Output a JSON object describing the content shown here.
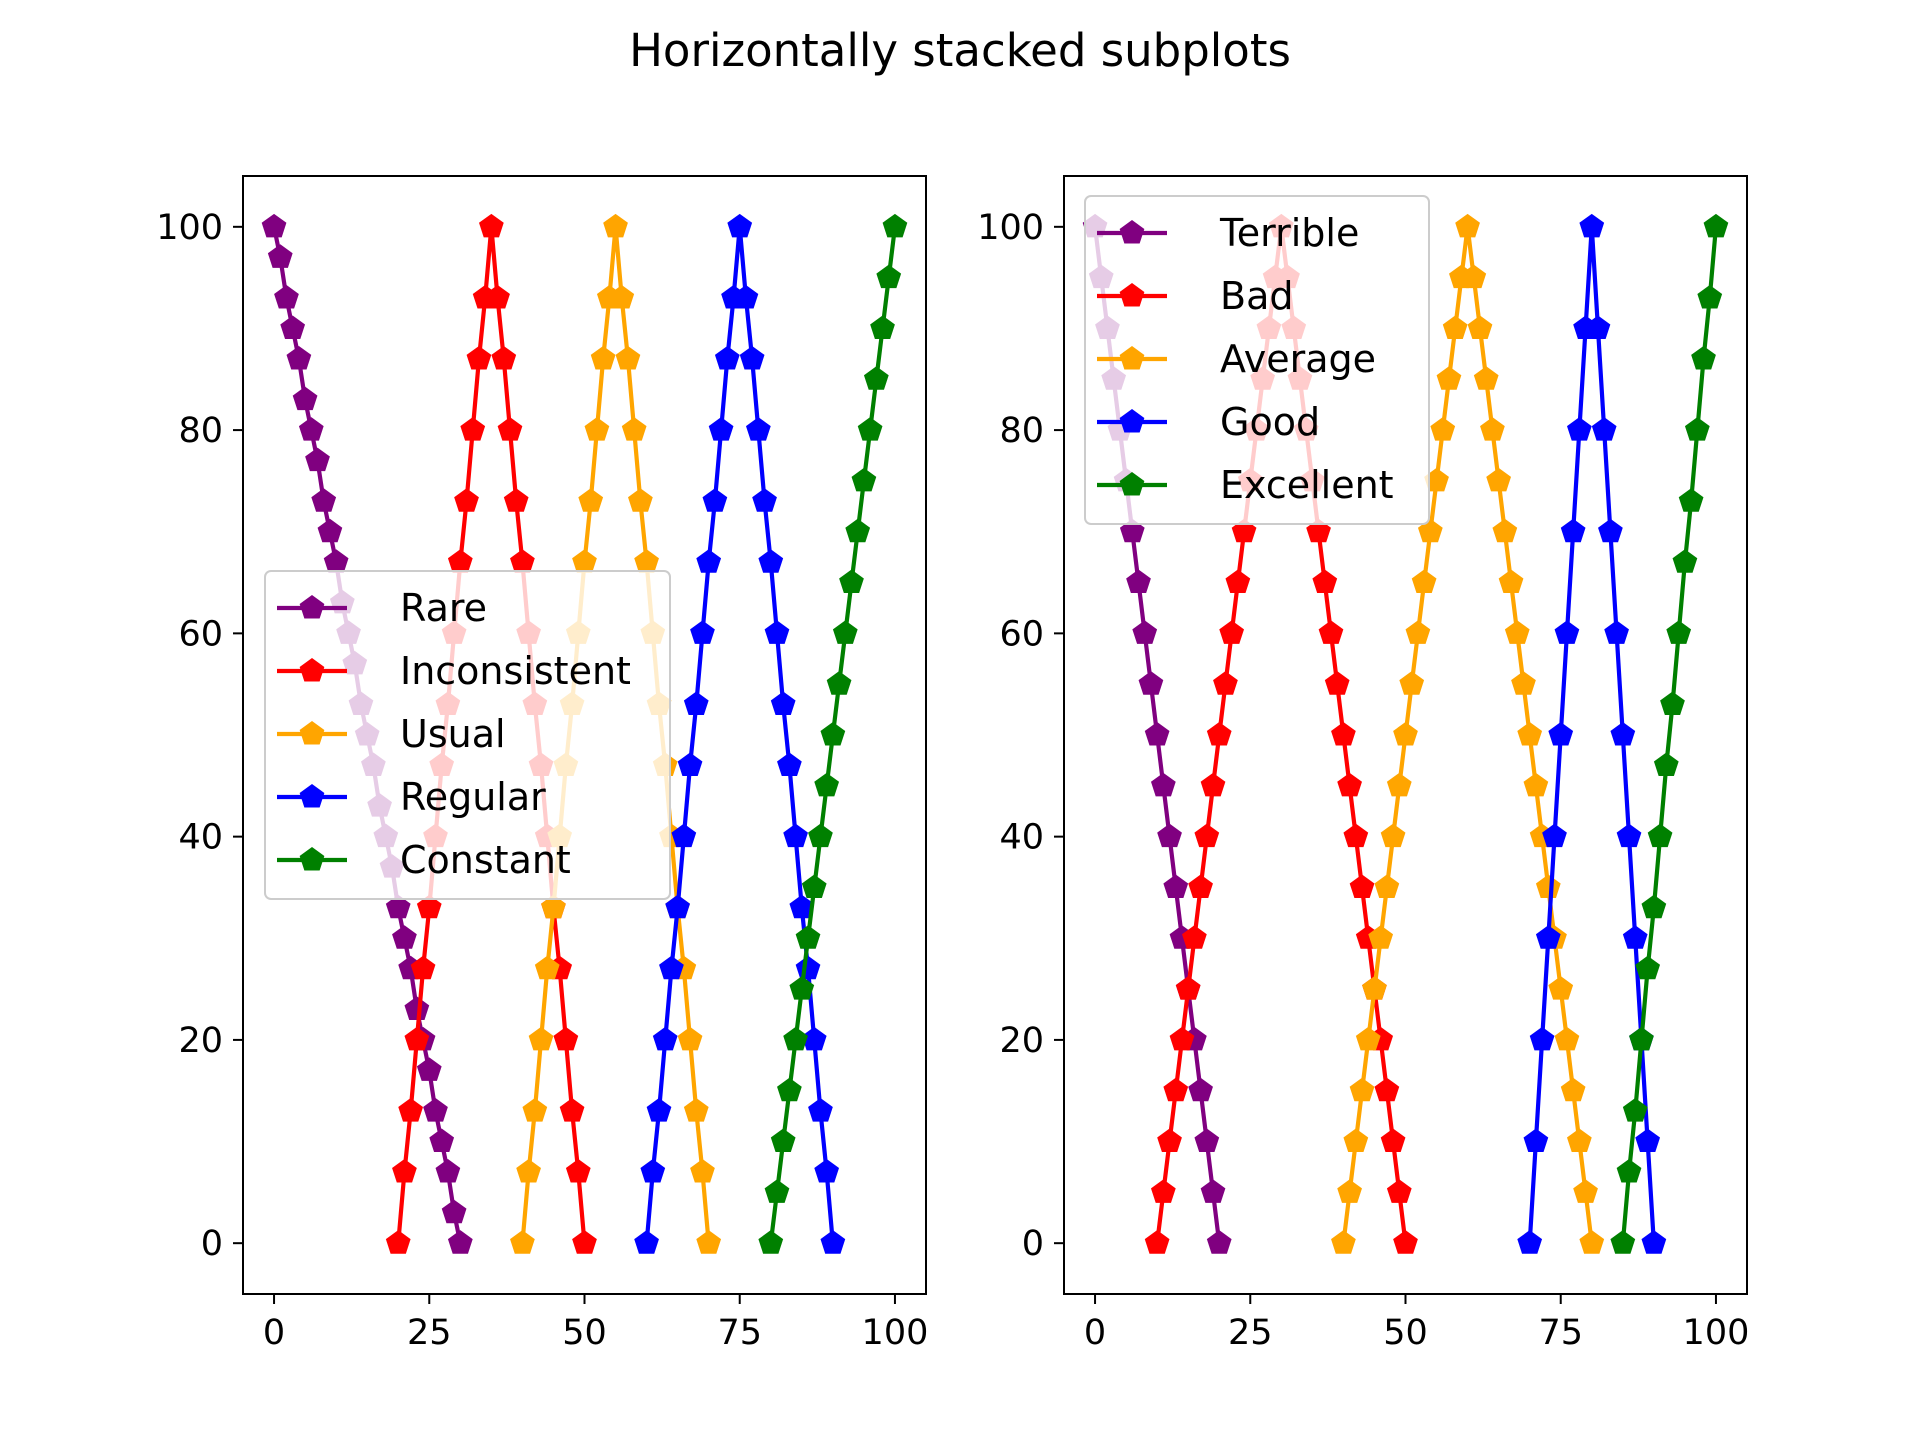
{
  "suptitle": "Horizontally stacked subplots",
  "chart_data": [
    {
      "type": "line",
      "marker": "pentagon",
      "xlim": [
        -5,
        105
      ],
      "ylim": [
        -5,
        105
      ],
      "xticks": [
        0,
        25,
        50,
        75,
        100
      ],
      "yticks": [
        0,
        20,
        40,
        60,
        80,
        100
      ],
      "legend_position": "center-left",
      "series": [
        {
          "name": "Rare",
          "color": "#800080",
          "x": [
            0,
            1,
            2,
            3,
            4,
            5,
            6,
            7,
            8,
            9,
            10,
            11,
            12,
            13,
            14,
            15,
            16,
            17,
            18,
            19,
            20,
            21,
            22,
            23,
            24,
            25,
            26,
            27,
            28,
            29,
            30
          ],
          "y": [
            100,
            97,
            93,
            90,
            87,
            83,
            80,
            77,
            73,
            70,
            67,
            63,
            60,
            57,
            53,
            50,
            47,
            43,
            40,
            37,
            33,
            30,
            27,
            23,
            20,
            17,
            13,
            10,
            7,
            3,
            0
          ]
        },
        {
          "name": "Inconsistent",
          "color": "#ff0000",
          "x": [
            20,
            21,
            22,
            23,
            24,
            25,
            26,
            27,
            28,
            29,
            30,
            31,
            32,
            33,
            34,
            35,
            36,
            37,
            38,
            39,
            40,
            41,
            42,
            43,
            44,
            45,
            46,
            47,
            48,
            49,
            50
          ],
          "y": [
            0,
            7,
            13,
            20,
            27,
            33,
            40,
            47,
            53,
            60,
            67,
            73,
            80,
            87,
            93,
            100,
            93,
            87,
            80,
            73,
            67,
            60,
            53,
            47,
            40,
            33,
            27,
            20,
            13,
            7,
            0
          ]
        },
        {
          "name": "Usual",
          "color": "#ffa500",
          "x": [
            40,
            41,
            42,
            43,
            44,
            45,
            46,
            47,
            48,
            49,
            50,
            51,
            52,
            53,
            54,
            55,
            56,
            57,
            58,
            59,
            60,
            61,
            62,
            63,
            64,
            65,
            66,
            67,
            68,
            69,
            70
          ],
          "y": [
            0,
            7,
            13,
            20,
            27,
            33,
            40,
            47,
            53,
            60,
            67,
            73,
            80,
            87,
            93,
            100,
            93,
            87,
            80,
            73,
            67,
            60,
            53,
            47,
            40,
            33,
            27,
            20,
            13,
            7,
            0
          ]
        },
        {
          "name": "Regular",
          "color": "#0000ff",
          "x": [
            60,
            61,
            62,
            63,
            64,
            65,
            66,
            67,
            68,
            69,
            70,
            71,
            72,
            73,
            74,
            75,
            76,
            77,
            78,
            79,
            80,
            81,
            82,
            83,
            84,
            85,
            86,
            87,
            88,
            89,
            90
          ],
          "y": [
            0,
            7,
            13,
            20,
            27,
            33,
            40,
            47,
            53,
            60,
            67,
            73,
            80,
            87,
            93,
            100,
            93,
            87,
            80,
            73,
            67,
            60,
            53,
            47,
            40,
            33,
            27,
            20,
            13,
            7,
            0
          ]
        },
        {
          "name": "Constant",
          "color": "#008000",
          "x": [
            80,
            81,
            82,
            83,
            84,
            85,
            86,
            87,
            88,
            89,
            90,
            91,
            92,
            93,
            94,
            95,
            96,
            97,
            98,
            99,
            100
          ],
          "y": [
            0,
            5,
            10,
            15,
            20,
            25,
            30,
            35,
            40,
            45,
            50,
            55,
            60,
            65,
            70,
            75,
            80,
            85,
            90,
            95,
            100
          ]
        }
      ]
    },
    {
      "type": "line",
      "marker": "pentagon",
      "xlim": [
        -5,
        105
      ],
      "ylim": [
        -5,
        105
      ],
      "xticks": [
        0,
        25,
        50,
        75,
        100
      ],
      "yticks": [
        0,
        20,
        40,
        60,
        80,
        100
      ],
      "legend_position": "upper-left",
      "series": [
        {
          "name": "Terrible",
          "color": "#800080",
          "x": [
            0,
            1,
            2,
            3,
            4,
            5,
            6,
            7,
            8,
            9,
            10,
            11,
            12,
            13,
            14,
            15,
            16,
            17,
            18,
            19,
            20
          ],
          "y": [
            100,
            95,
            90,
            85,
            80,
            75,
            70,
            65,
            60,
            55,
            50,
            45,
            40,
            35,
            30,
            25,
            20,
            15,
            10,
            5,
            0
          ]
        },
        {
          "name": "Bad",
          "color": "#ff0000",
          "x": [
            10,
            11,
            12,
            13,
            14,
            15,
            16,
            17,
            18,
            19,
            20,
            21,
            22,
            23,
            24,
            25,
            26,
            27,
            28,
            29,
            30,
            31,
            32,
            33,
            34,
            35,
            36,
            37,
            38,
            39,
            40,
            41,
            42,
            43,
            44,
            45,
            46,
            47,
            48,
            49,
            50
          ],
          "y": [
            0,
            5,
            10,
            15,
            20,
            25,
            30,
            35,
            40,
            45,
            50,
            55,
            60,
            65,
            70,
            75,
            80,
            85,
            90,
            95,
            100,
            95,
            90,
            85,
            80,
            75,
            70,
            65,
            60,
            55,
            50,
            45,
            40,
            35,
            30,
            25,
            20,
            15,
            10,
            5,
            0
          ]
        },
        {
          "name": "Average",
          "color": "#ffa500",
          "x": [
            40,
            41,
            42,
            43,
            44,
            45,
            46,
            47,
            48,
            49,
            50,
            51,
            52,
            53,
            54,
            55,
            56,
            57,
            58,
            59,
            60,
            61,
            62,
            63,
            64,
            65,
            66,
            67,
            68,
            69,
            70,
            71,
            72,
            73,
            74,
            75,
            76,
            77,
            78,
            79,
            80
          ],
          "y": [
            0,
            5,
            10,
            15,
            20,
            25,
            30,
            35,
            40,
            45,
            50,
            55,
            60,
            65,
            70,
            75,
            80,
            85,
            90,
            95,
            100,
            95,
            90,
            85,
            80,
            75,
            70,
            65,
            60,
            55,
            50,
            45,
            40,
            35,
            30,
            25,
            20,
            15,
            10,
            5,
            0
          ]
        },
        {
          "name": "Good",
          "color": "#0000ff",
          "x": [
            70,
            71,
            72,
            73,
            74,
            75,
            76,
            77,
            78,
            79,
            80,
            81,
            82,
            83,
            84,
            85,
            86,
            87,
            88,
            89,
            90
          ],
          "y": [
            0,
            10,
            20,
            30,
            40,
            50,
            60,
            70,
            80,
            90,
            100,
            90,
            80,
            70,
            60,
            50,
            40,
            30,
            20,
            10,
            0
          ]
        },
        {
          "name": "Excellent",
          "color": "#008000",
          "x": [
            85,
            86,
            87,
            88,
            89,
            90,
            91,
            92,
            93,
            94,
            95,
            96,
            97,
            98,
            99,
            100
          ],
          "y": [
            0,
            7,
            13,
            20,
            27,
            33,
            40,
            47,
            53,
            60,
            67,
            73,
            80,
            87,
            93,
            100
          ]
        }
      ]
    }
  ]
}
